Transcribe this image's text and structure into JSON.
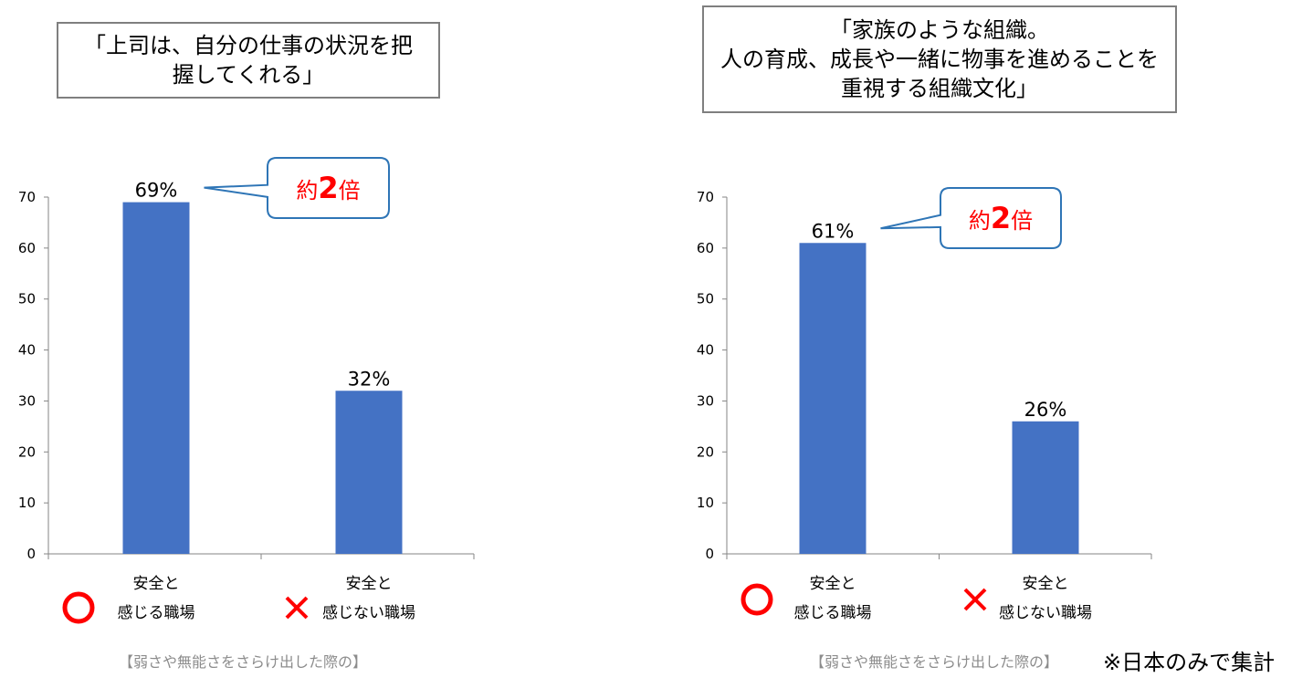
{
  "footnote": "※日本のみで集計",
  "chart_data": [
    {
      "type": "bar",
      "title": "「上司は、自分の仕事の状況を把\n握してくれる」",
      "categories": [
        [
          "安全と",
          "感じる職場"
        ],
        [
          "安全と",
          "感じない職場"
        ]
      ],
      "values": [
        69,
        32
      ],
      "data_labels": [
        "69%",
        "32%"
      ],
      "markers": [
        "○",
        "×"
      ],
      "marker_colors": [
        "#ff0000",
        "#ff0000"
      ],
      "bar_color": "#4472c4",
      "ylim": [
        0,
        70
      ],
      "yticks": [
        0,
        10,
        20,
        30,
        40,
        50,
        60,
        70
      ],
      "callout": {
        "prefix": "約",
        "number": "2",
        "suffix": "倍"
      },
      "note": "【弱さや無能さをさらけ出した際の】"
    },
    {
      "type": "bar",
      "title": "「家族のような組織。\n人の育成、成長や一緒に物事を進めることを\n重視する組織文化」",
      "categories": [
        [
          "安全と",
          "感じる職場"
        ],
        [
          "安全と",
          "感じない職場"
        ]
      ],
      "values": [
        61,
        26
      ],
      "data_labels": [
        "61%",
        "26%"
      ],
      "markers": [
        "○",
        "×"
      ],
      "marker_colors": [
        "#ff0000",
        "#ff0000"
      ],
      "bar_color": "#4472c4",
      "ylim": [
        0,
        70
      ],
      "yticks": [
        0,
        10,
        20,
        30,
        40,
        50,
        60,
        70
      ],
      "callout": {
        "prefix": "約",
        "number": "2",
        "suffix": "倍"
      },
      "note": "【弱さや無能さをさらけ出した際の】"
    }
  ]
}
